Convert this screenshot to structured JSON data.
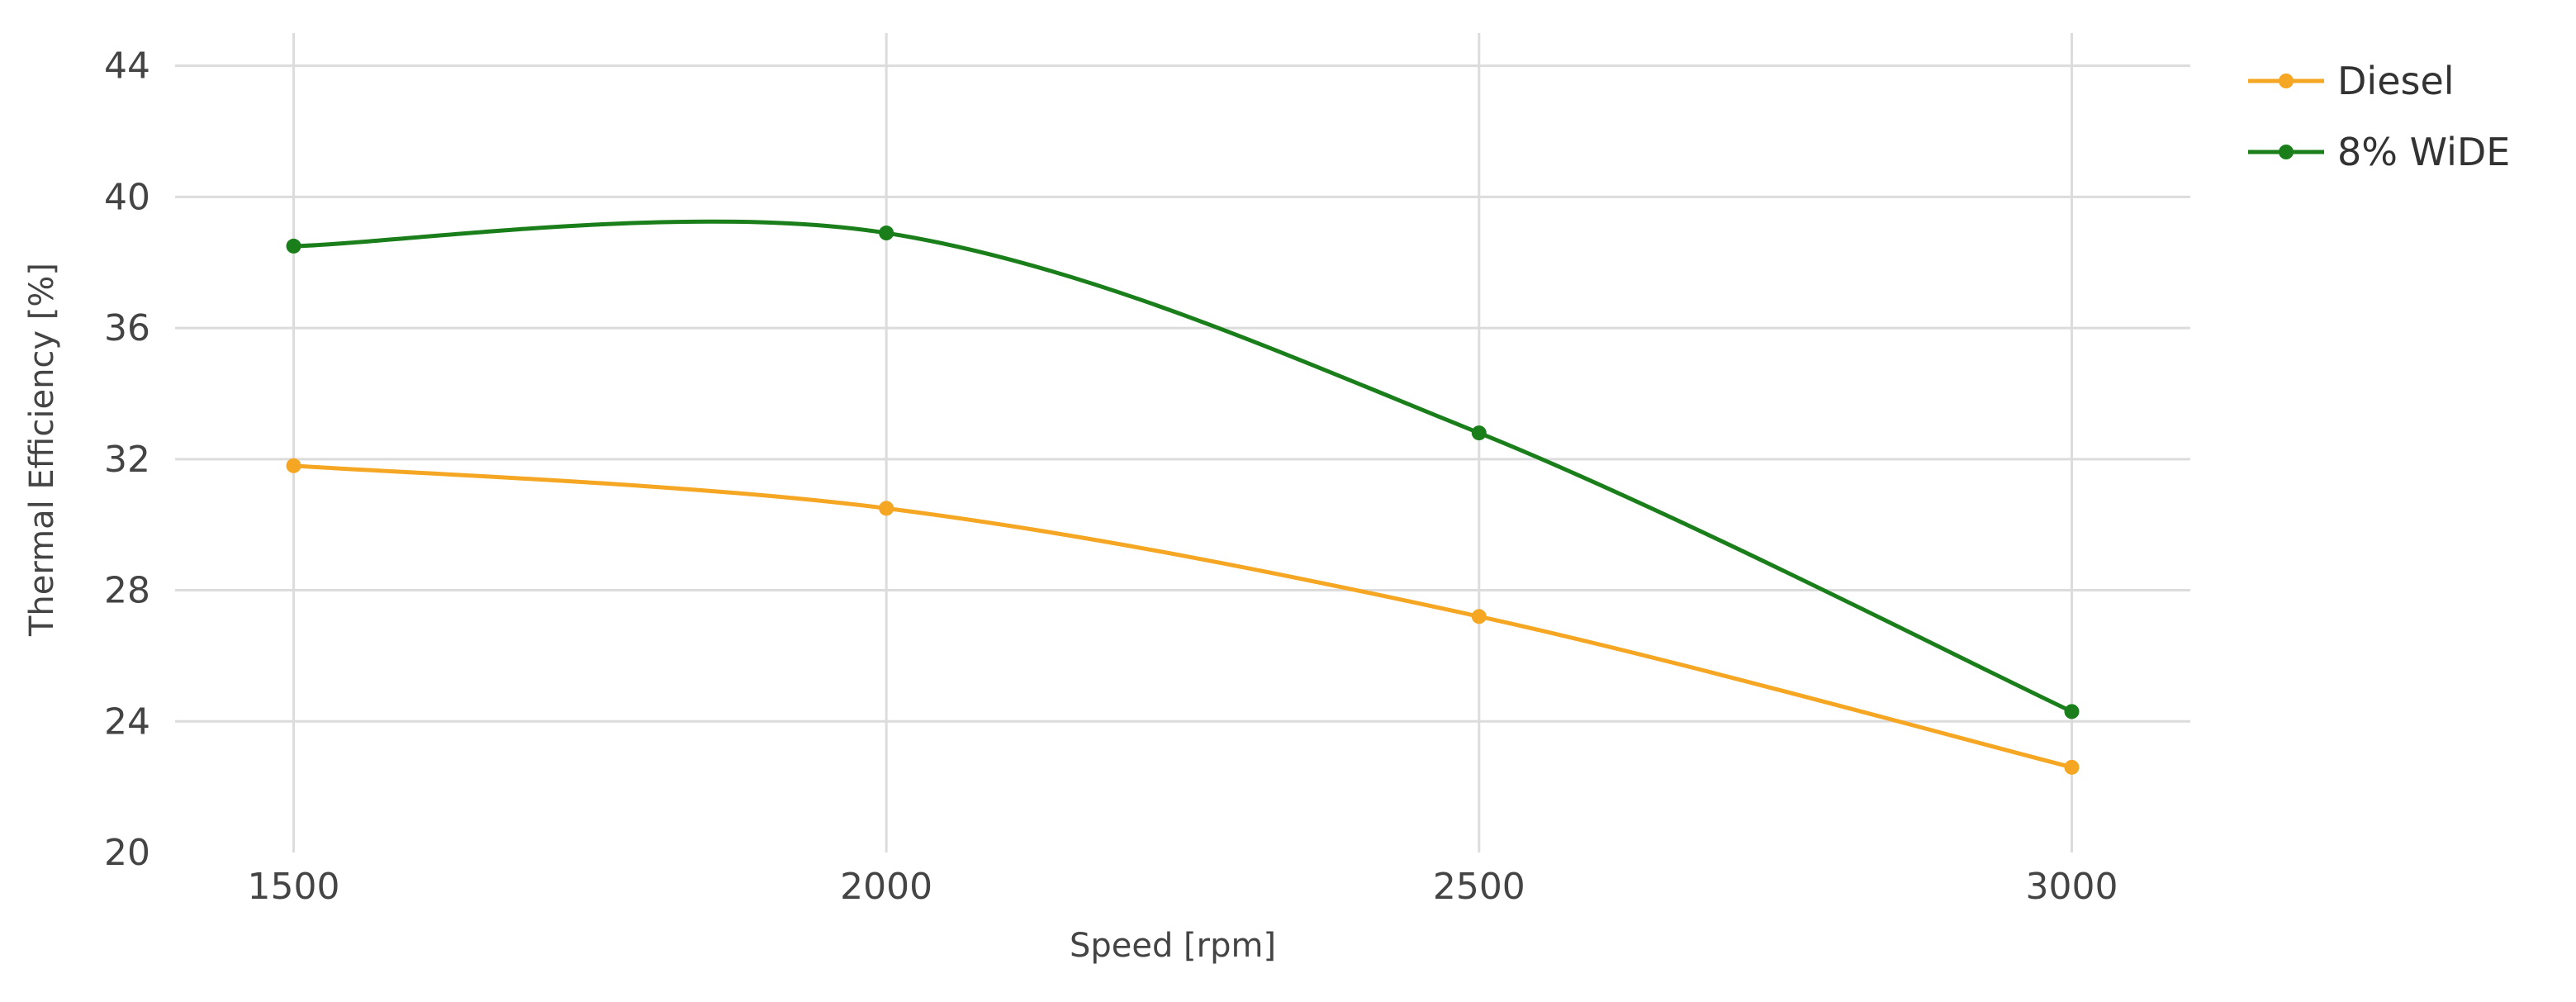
{
  "chart_data": {
    "type": "line",
    "xlabel": "Speed [rpm]",
    "ylabel": "Thermal Efficiency [%]",
    "xlim": [
      1400,
      3100
    ],
    "ylim": [
      20,
      45
    ],
    "x_ticks": [
      1500,
      2000,
      2500,
      3000
    ],
    "y_ticks": [
      20,
      24,
      28,
      32,
      36,
      40,
      44
    ],
    "grid": true,
    "legend_position": "top-right",
    "smooth": true,
    "x": [
      1500,
      2000,
      2500,
      3000
    ],
    "series": [
      {
        "name": "Diesel",
        "color": "#f5a623",
        "values": [
          31.8,
          30.5,
          27.2,
          22.6
        ]
      },
      {
        "name": "8% WiDE",
        "color": "#1a7f1a",
        "values": [
          38.5,
          38.9,
          32.8,
          24.3
        ]
      }
    ]
  }
}
